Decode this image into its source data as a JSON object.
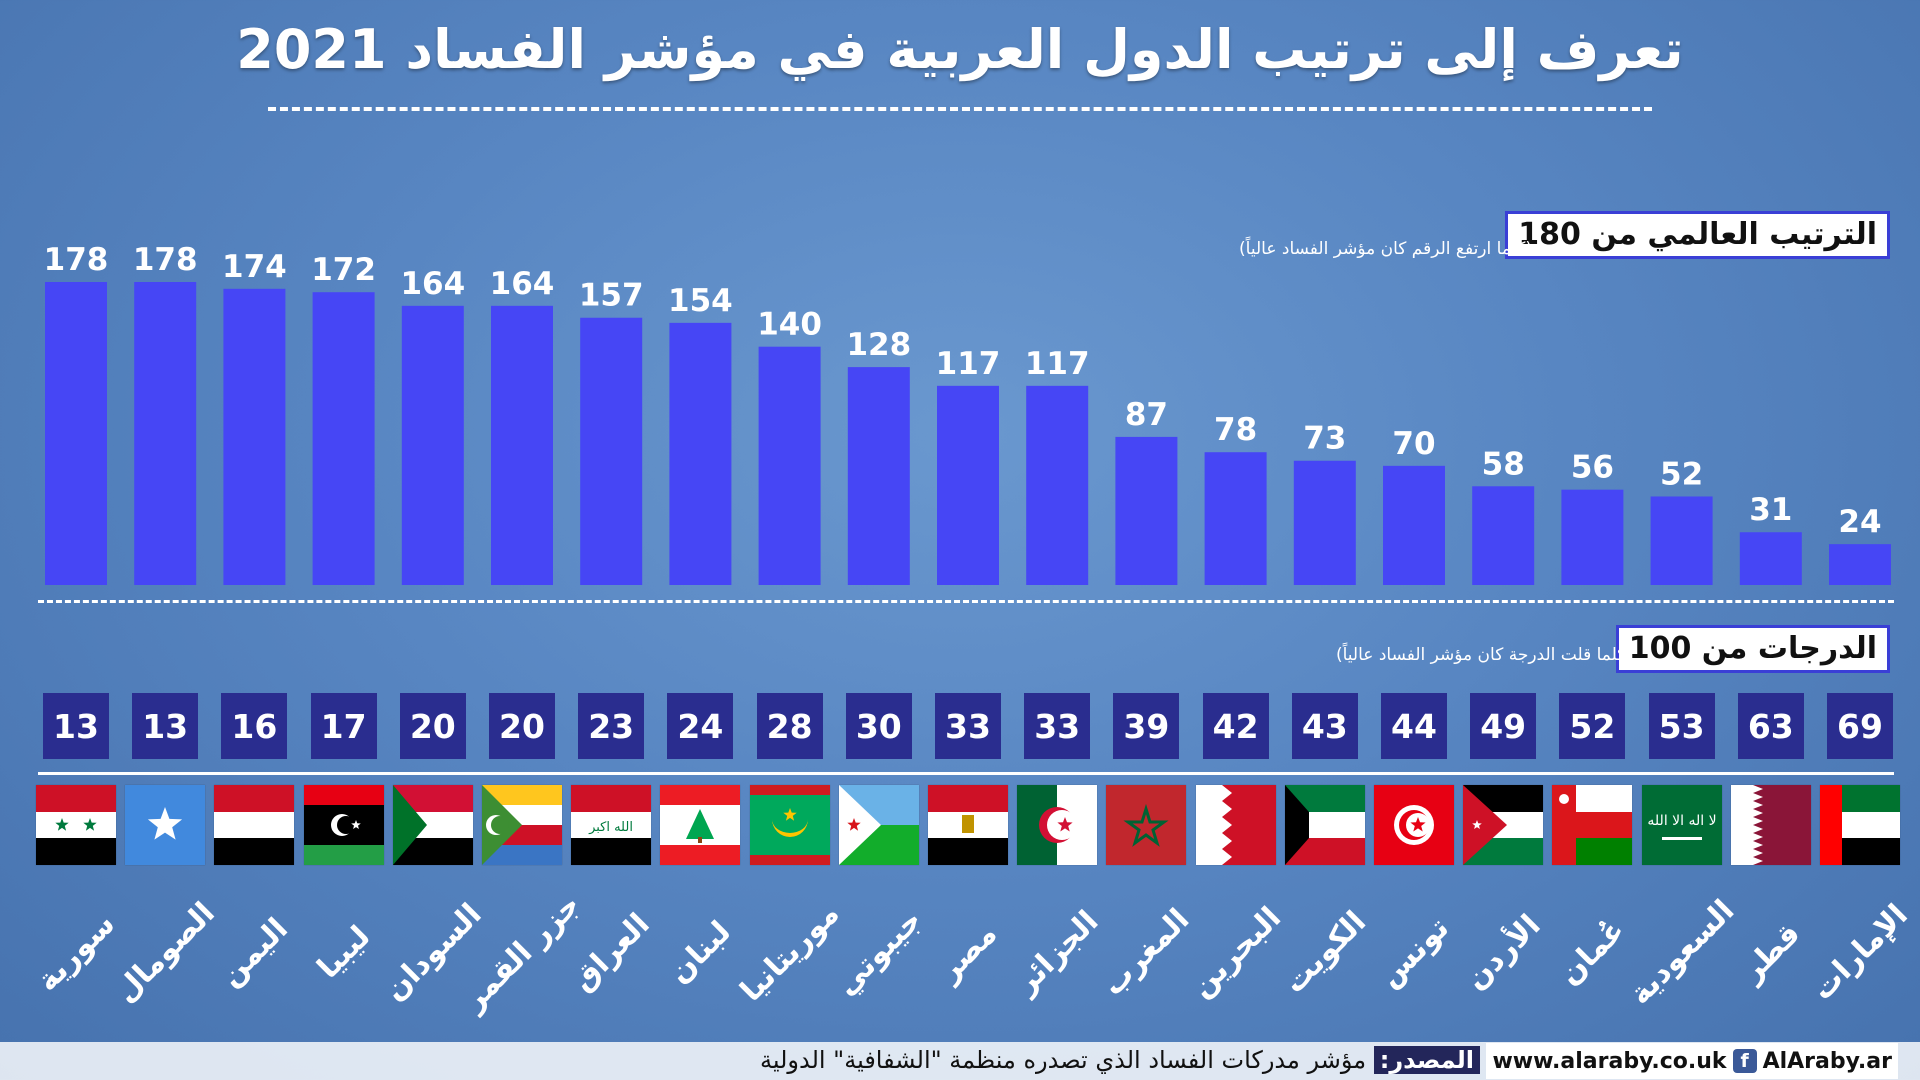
{
  "title": "تعرف إلى ترتيب الدول العربية في مؤشر الفساد 2021",
  "legend": {
    "rank_heading": "الترتيب العالمي من 180",
    "rank_note": "(كلما ارتفع الرقم كان مؤشر الفساد عالياً)",
    "score_heading": "الدرجات من 100",
    "score_note": "(كلما قلت الدرجة كان مؤشر الفساد عالياً)"
  },
  "source": {
    "label": "المصدر:",
    "text": " مؤشر مدركات الفساد الذي تصدره منظمة \"الشفافية\" الدولية",
    "site": "www.alaraby.co.uk",
    "social": "AlAraby.ar"
  },
  "icons": {
    "facebook": "facebook-icon"
  },
  "colors": {
    "bar": "#4646f5",
    "score_box": "#2a2d8f",
    "background": "#5886c2"
  },
  "chart_data": {
    "type": "bar",
    "categories": [
      "سورية",
      "الصومال",
      "اليمن",
      "ليبيا",
      "السودان",
      "جزر القمر",
      "العراق",
      "لبنان",
      "موريتانيا",
      "جيبوتي",
      "مصر",
      "الجزائر",
      "المغرب",
      "البحرين",
      "الكويت",
      "تونس",
      "الأردن",
      "عُمان",
      "السعودية",
      "قطر",
      "الإمارات"
    ],
    "series": [
      {
        "name": "الترتيب العالمي من 180",
        "values": [
          178,
          178,
          174,
          172,
          164,
          164,
          157,
          154,
          140,
          128,
          117,
          117,
          87,
          78,
          73,
          70,
          58,
          56,
          52,
          31,
          24
        ]
      },
      {
        "name": "الدرجات من 100",
        "values": [
          13,
          13,
          16,
          17,
          20,
          20,
          23,
          24,
          28,
          30,
          33,
          33,
          39,
          42,
          43,
          44,
          49,
          52,
          53,
          63,
          69
        ]
      }
    ],
    "ylim": [
      0,
      180
    ],
    "grid": false,
    "title": "تعرف إلى ترتيب الدول العربية في مؤشر الفساد 2021"
  }
}
